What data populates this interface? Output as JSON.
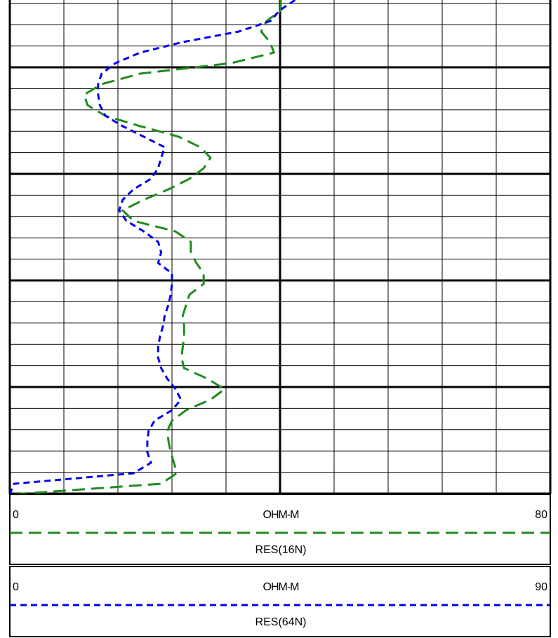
{
  "chart_data": {
    "type": "line",
    "xlim": [
      0,
      80
    ],
    "xticks": [
      0,
      80
    ],
    "xlabel": "OHM-M",
    "x2lim": [
      0,
      90
    ],
    "x2ticks": [
      0,
      90
    ],
    "x2label": "OHM-M",
    "grid": true,
    "series": [
      {
        "name": "RES(16N)",
        "color": "#1e8c1e",
        "axis": "x",
        "values": [
          40.1,
          40.1,
          38.0,
          37.2,
          38.5,
          39.1,
          32.8,
          19.3,
          13.6,
          11.0,
          11.5,
          14.1,
          19.3,
          25.0,
          28.2,
          29.7,
          28.7,
          26.6,
          23.5,
          19.8,
          16.7,
          18.3,
          24.5,
          26.8,
          26.8,
          27.6,
          28.7,
          28.7,
          26.6,
          26.1,
          25.6,
          25.8,
          25.8,
          25.6,
          25.4,
          25.8,
          29.2,
          31.8,
          29.7,
          26.1,
          24.0,
          23.3,
          23.5,
          23.8,
          24.3,
          24.7,
          22.4,
          0.6
        ]
      },
      {
        "name": "RES(64N)",
        "color": "#0000ee",
        "axis": "x2",
        "values": [
          47.5,
          44.9,
          43.4,
          38.1,
          28.8,
          21.7,
          17.6,
          15.3,
          14.7,
          14.7,
          15.0,
          15.9,
          18.8,
          22.3,
          25.8,
          25.2,
          24.7,
          23.5,
          20.6,
          18.8,
          18.2,
          19.4,
          22.3,
          24.7,
          25.2,
          24.7,
          27.0,
          27.0,
          26.8,
          26.4,
          25.8,
          25.5,
          25.0,
          24.7,
          24.7,
          25.2,
          26.2,
          27.6,
          28.5,
          27.0,
          24.1,
          23.1,
          22.9,
          22.9,
          23.5,
          20.6,
          0.7,
          0.0
        ]
      }
    ]
  }
}
